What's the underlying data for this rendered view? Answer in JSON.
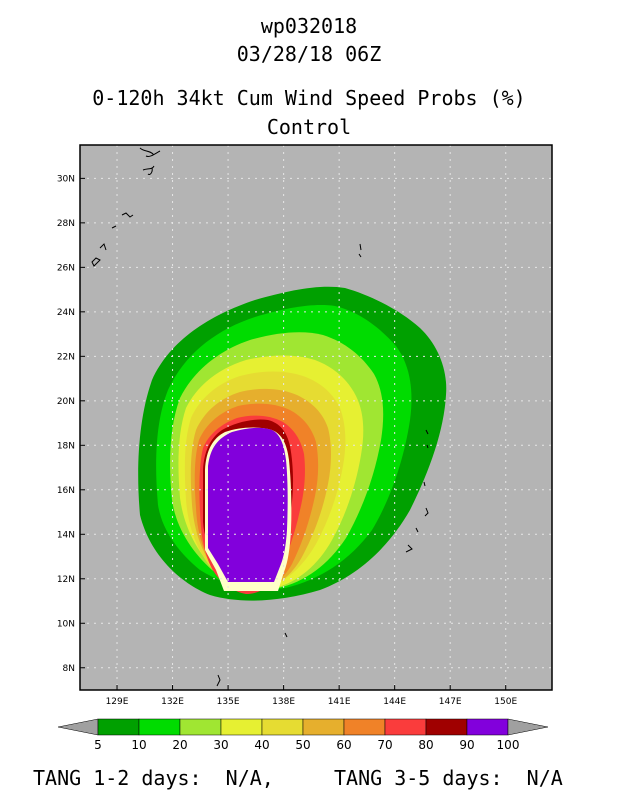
{
  "titles": {
    "storm_id": "wp032018",
    "datetime": "03/28/18 06Z",
    "product": "0-120h 34kt Cum Wind Speed Probs (%)",
    "run": "Control"
  },
  "chart_data": {
    "type": "heatmap",
    "variable": "0-120h 34kt cumulative wind speed probability (%)",
    "lon_ticks": [
      "129E",
      "132E",
      "135E",
      "138E",
      "141E",
      "144E",
      "147E",
      "150E"
    ],
    "lat_ticks": [
      "8N",
      "10N",
      "12N",
      "14N",
      "16N",
      "18N",
      "20N",
      "22N",
      "24N",
      "26N",
      "28N",
      "30N"
    ],
    "lon_range": [
      127,
      152.5
    ],
    "lat_range": [
      7,
      31.5
    ],
    "grid": true,
    "background_color": "#b4b4b4",
    "probability_bins": [
      {
        "lower": 5,
        "color": "#00a000"
      },
      {
        "lower": 10,
        "color": "#00dc00"
      },
      {
        "lower": 20,
        "color": "#a0e632"
      },
      {
        "lower": 30,
        "color": "#e6f032"
      },
      {
        "lower": 40,
        "color": "#e6dc32"
      },
      {
        "lower": 50,
        "color": "#e6af2d"
      },
      {
        "lower": 60,
        "color": "#f08228"
      },
      {
        "lower": 70,
        "color": "#fa3c3c"
      },
      {
        "lower": 80,
        "color": "#a00000"
      },
      {
        "lower": 90,
        "color": "#8200dc"
      }
    ],
    "colorbar_labels": [
      "5",
      "10",
      "20",
      "30",
      "40",
      "50",
      "60",
      "70",
      "80",
      "90",
      "100"
    ]
  },
  "footer": {
    "tang_12": "TANG 1-2 days:  N/A,",
    "tang_35": "TANG 3-5 days:  N/A"
  }
}
